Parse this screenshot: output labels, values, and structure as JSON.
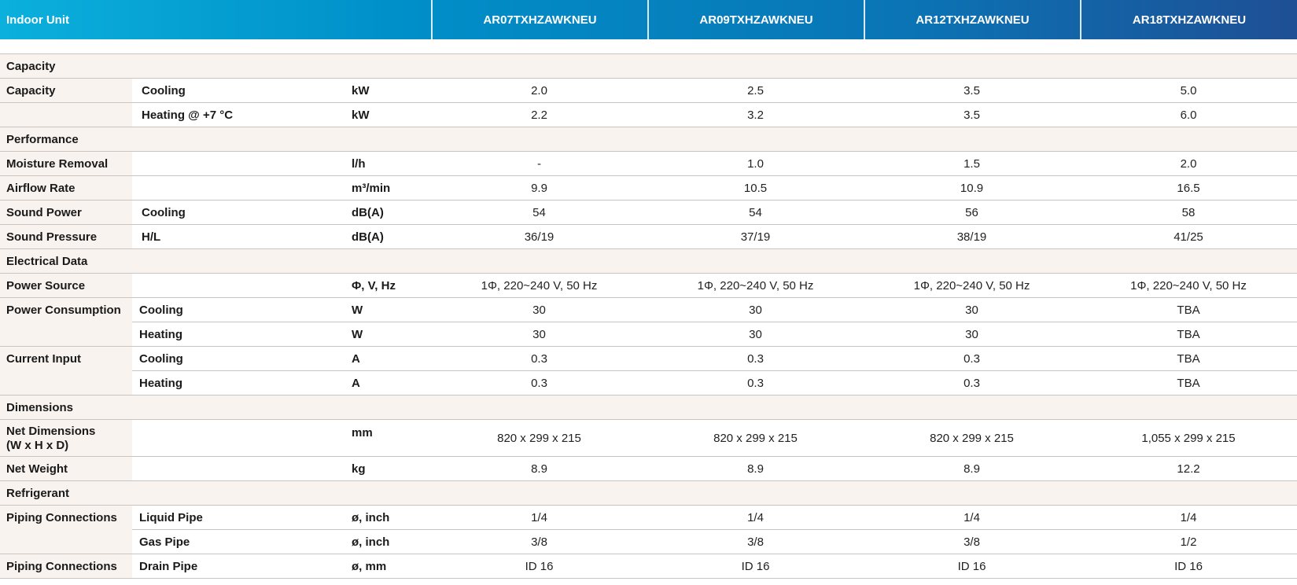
{
  "header": {
    "label": "Indoor Unit",
    "models": [
      "AR07TXHZAWKNEU",
      "AR09TXHZAWKNEU",
      "AR12TXHZAWKNEU",
      "AR18TXHZAWKNEU"
    ]
  },
  "sections": {
    "capacity": "Capacity",
    "performance": "Performance",
    "electrical": "Electrical Data",
    "dimensions": "Dimensions",
    "refrigerant": "Refrigerant"
  },
  "rows": {
    "cap_cool": {
      "label": "Capacity",
      "sub": "Cooling",
      "unit": "kW",
      "values": [
        "2.0",
        "2.5",
        "3.5",
        "5.0"
      ]
    },
    "cap_heat": {
      "label": "",
      "sub": "Heating @ +7 °C",
      "unit": "kW",
      "values": [
        "2.2",
        "3.2",
        "3.5",
        "6.0"
      ]
    },
    "moisture": {
      "label": "Moisture Removal",
      "sub": "",
      "unit": "l/h",
      "values": [
        "-",
        "1.0",
        "1.5",
        "2.0"
      ]
    },
    "airflow": {
      "label": "Airflow Rate",
      "sub": "",
      "unit": "m³/min",
      "values": [
        "9.9",
        "10.5",
        "10.9",
        "16.5"
      ]
    },
    "sound_power": {
      "label": "Sound Power",
      "sub": "Cooling",
      "unit": "dB(A)",
      "values": [
        "54",
        "54",
        "56",
        "58"
      ]
    },
    "sound_pressure": {
      "label": "Sound Pressure",
      "sub": "H/L",
      "unit": "dB(A)",
      "values": [
        "36/19",
        "37/19",
        "38/19",
        "41/25"
      ]
    },
    "power_source": {
      "label": "Power Source",
      "sub": "",
      "unit": "Φ, V, Hz",
      "values": [
        "1Φ, 220~240 V, 50 Hz",
        "1Φ, 220~240 V, 50 Hz",
        "1Φ, 220~240 V, 50 Hz",
        "1Φ, 220~240 V, 50 Hz"
      ]
    },
    "pc_cool": {
      "label": "Power Consumption",
      "sub": "Cooling",
      "unit": "W",
      "values": [
        "30",
        "30",
        "30",
        "TBA"
      ]
    },
    "pc_heat": {
      "label": "",
      "sub": "Heating",
      "unit": "W",
      "values": [
        "30",
        "30",
        "30",
        "TBA"
      ]
    },
    "ci_cool": {
      "label": "Current Input",
      "sub": "Cooling",
      "unit": "A",
      "values": [
        "0.3",
        "0.3",
        "0.3",
        "TBA"
      ]
    },
    "ci_heat": {
      "label": "",
      "sub": "Heating",
      "unit": "A",
      "values": [
        "0.3",
        "0.3",
        "0.3",
        "TBA"
      ]
    },
    "net_dim": {
      "label_line1": "Net Dimensions",
      "label_line2": "(W x H x D)",
      "sub": "",
      "unit": "mm",
      "values": [
        "820 x 299 x 215",
        "820 x 299 x 215",
        "820 x 299 x 215",
        "1,055 x 299 x 215"
      ]
    },
    "net_weight": {
      "label": "Net Weight",
      "sub": "",
      "unit": "kg",
      "values": [
        "8.9",
        "8.9",
        "8.9",
        "12.2"
      ]
    },
    "pipe_liquid": {
      "label": "Piping Connections",
      "sub": "Liquid Pipe",
      "unit": "ø, inch",
      "values": [
        "1/4",
        "1/4",
        "1/4",
        "1/4"
      ]
    },
    "pipe_gas": {
      "label": "",
      "sub": "Gas Pipe",
      "unit": "ø, inch",
      "values": [
        "3/8",
        "3/8",
        "3/8",
        "1/2"
      ]
    },
    "pipe_drain": {
      "label": "Piping Connections",
      "sub": "Drain Pipe",
      "unit": "ø, mm",
      "values": [
        "ID 16",
        "ID 16",
        "ID 16",
        "ID 16"
      ]
    }
  }
}
